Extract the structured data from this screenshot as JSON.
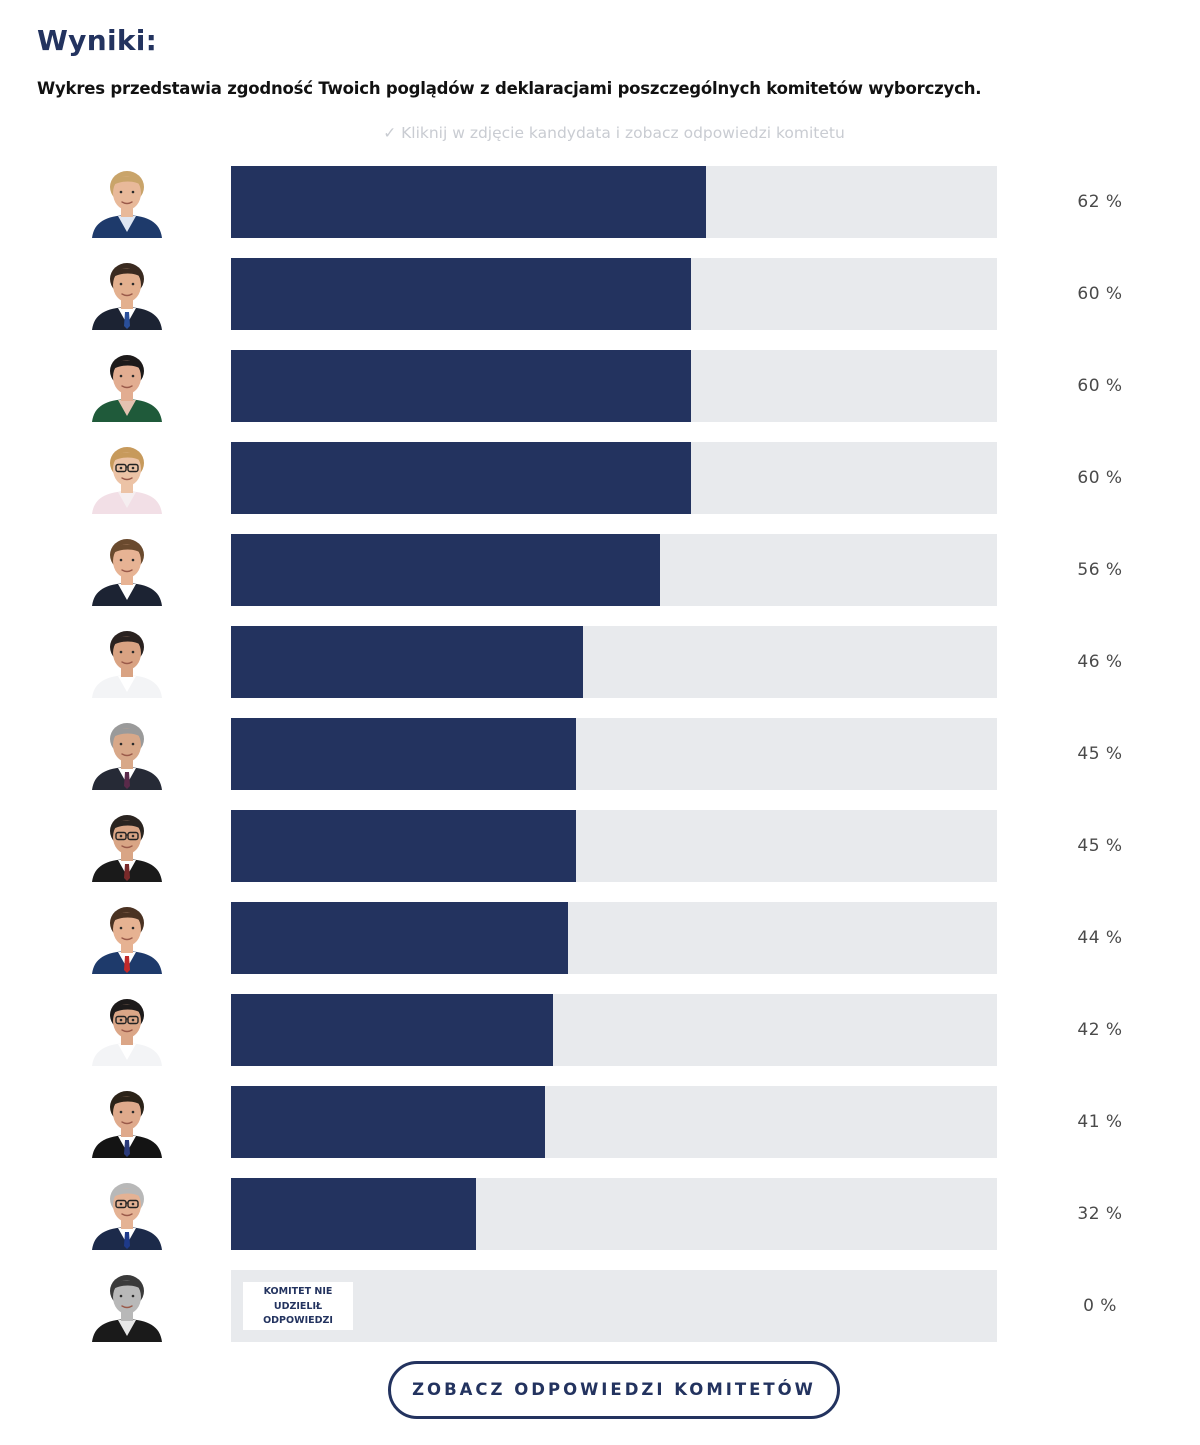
{
  "header": {
    "title": "Wyniki:",
    "subtitle": "Wykres przedstawia zgodność Twoich poglądów z deklaracjami poszczególnych komitetów wyborczych.",
    "hint": "✓ Kliknij w zdjęcie kandydata i zobacz odpowiedzi komitetu"
  },
  "colors": {
    "accent": "#23335f",
    "track": "#e8eaed",
    "percent_text": "#4a4a4a"
  },
  "chart_data": {
    "type": "bar",
    "orientation": "horizontal",
    "title": "Wyniki:",
    "xlim": [
      0,
      100
    ],
    "unit": "%",
    "values": [
      62,
      60,
      60,
      60,
      56,
      46,
      45,
      45,
      44,
      42,
      41,
      32,
      0
    ],
    "labels": [
      "62 %",
      "60 %",
      "60 %",
      "60 %",
      "56 %",
      "46 %",
      "45 %",
      "45 %",
      "44 %",
      "42 %",
      "41 %",
      "32 %",
      "0 %"
    ],
    "no_answer_label": "KOMITET NIE UDZIELIŁ ODPOWIEDZI",
    "no_answer_lines": [
      "KOMITET NIE",
      "UDZIELIŁ",
      "ODPOWIEDZI"
    ]
  },
  "candidates": [
    {
      "icon": "candidate-photo-icon",
      "jacket": "#1e3a6b",
      "shirt": "#dfe6f2",
      "tie": "",
      "hair": "#c9a46a",
      "skin": "#e8b99a",
      "glasses": false
    },
    {
      "icon": "candidate-photo-icon",
      "jacket": "#1c2333",
      "shirt": "#ffffff",
      "tie": "#2a4f9a",
      "hair": "#3a2a20",
      "skin": "#e3b08f",
      "glasses": false
    },
    {
      "icon": "candidate-photo-icon",
      "jacket": "#1f5a3a",
      "shirt": "#e4c2b0",
      "tie": "",
      "hair": "#1d1a1a",
      "skin": "#e2ad91",
      "glasses": false
    },
    {
      "icon": "candidate-photo-icon",
      "jacket": "#f2dfe6",
      "shirt": "#f5eef0",
      "tie": "",
      "hair": "#c79a5c",
      "skin": "#ecc3a6",
      "glasses": true
    },
    {
      "icon": "candidate-photo-icon",
      "jacket": "#1c2333",
      "shirt": "#ffffff",
      "tie": "",
      "hair": "#6a4a2e",
      "skin": "#e7b394",
      "glasses": false
    },
    {
      "icon": "candidate-photo-icon",
      "jacket": "#f3f4f6",
      "shirt": "#ffffff",
      "tie": "",
      "hair": "#2a2220",
      "skin": "#d9a383",
      "glasses": false
    },
    {
      "icon": "candidate-photo-icon",
      "jacket": "#262a36",
      "shirt": "#ffffff",
      "tie": "#5a2a4a",
      "hair": "#9a9a9a",
      "skin": "#d8a889",
      "glasses": false
    },
    {
      "icon": "candidate-photo-icon",
      "jacket": "#1a1a1a",
      "shirt": "#ffffff",
      "tie": "#7a2a2a",
      "hair": "#2a2420",
      "skin": "#d9a585",
      "glasses": true
    },
    {
      "icon": "candidate-photo-icon",
      "jacket": "#1e3a6b",
      "shirt": "#ffffff",
      "tie": "#c22a2a",
      "hair": "#4a3222",
      "skin": "#e6b292",
      "glasses": false
    },
    {
      "icon": "candidate-photo-icon",
      "jacket": "#f3f4f6",
      "shirt": "#ffffff",
      "tie": "",
      "hair": "#1d1a1a",
      "skin": "#dba687",
      "glasses": true
    },
    {
      "icon": "candidate-photo-icon",
      "jacket": "#141414",
      "shirt": "#ffffff",
      "tie": "#2a3a7a",
      "hair": "#2b2218",
      "skin": "#dfaa8c",
      "glasses": false
    },
    {
      "icon": "candidate-photo-icon",
      "jacket": "#1c2a4a",
      "shirt": "#ffffff",
      "tie": "#1e3a8a",
      "hair": "#b8b8b8",
      "skin": "#e4b294",
      "glasses": true
    },
    {
      "icon": "candidate-photo-icon",
      "jacket": "#1a1a1a",
      "shirt": "#e6e6e6",
      "tie": "",
      "hair": "#3a3a3a",
      "skin": "#b8b8b8",
      "glasses": false
    }
  ],
  "cta": {
    "label": "ZOBACZ ODPOWIEDZI KOMITETÓW"
  }
}
